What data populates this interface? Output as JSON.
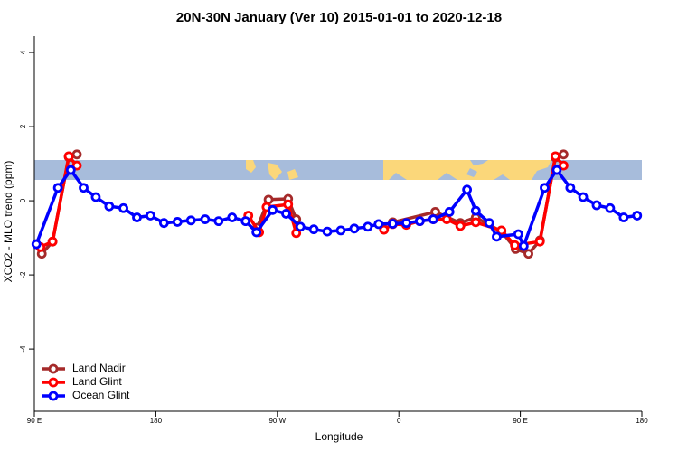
{
  "chart_data": {
    "type": "line",
    "title": "20N-30N January (Ver 10)   2015-01-01 to 2020-12-18",
    "x_label": "Longitude",
    "y_label": "XCO2 - MLO trend (ppm)",
    "xlim": [
      90,
      540
    ],
    "ylim": [
      -5.68,
      4.44
    ],
    "xticks": [
      {
        "value": 90,
        "label": "90 E"
      },
      180,
      {
        "value": 270,
        "label": "90 W"
      },
      {
        "value": 360,
        "label": "0"
      },
      {
        "value": 450,
        "label": "90 E"
      },
      {
        "value": 540,
        "label": "180"
      }
    ],
    "yticks": [
      4,
      2,
      0,
      -2,
      -4
    ],
    "legend": "bottomleft",
    "series": [
      {
        "name": "Land Nadir",
        "color": "#a52a2a",
        "x": [
          95.5,
          103.5,
          115.5,
          121.5,
          null,
          255,
          263.5,
          278,
          284,
          null,
          355.5,
          387,
          405.5,
          417,
          436,
          446.5,
          456,
          464.5,
          476,
          482
        ],
        "values": [
          -1.43,
          -1.1,
          1.18,
          1.25,
          null,
          -0.73,
          0.03,
          0.05,
          -0.5,
          null,
          -0.58,
          -0.3,
          -0.6,
          -0.45,
          -0.83,
          -1.3,
          -1.43,
          -1.07,
          1.17,
          1.25
        ]
      },
      {
        "name": "Land Glint",
        "color": "#ff0000",
        "x": [
          94.5,
          103.5,
          115.5,
          121.5,
          null,
          248.5,
          256.5,
          262,
          278,
          284,
          null,
          349,
          355.5,
          365.5,
          375.5,
          385.5,
          395.5,
          405.5,
          417,
          436,
          446,
          464.5,
          476,
          482
        ],
        "values": [
          -1.25,
          -1.1,
          1.2,
          0.95,
          null,
          -0.4,
          -0.85,
          -0.17,
          -0.1,
          -0.87,
          null,
          -0.78,
          -0.63,
          -0.65,
          -0.55,
          -0.5,
          -0.5,
          -0.68,
          -0.58,
          -0.8,
          -1.2,
          -1.1,
          1.2,
          0.95
        ]
      },
      {
        "name": "Ocean Glint",
        "color": "#0000ff",
        "x": [
          91.5,
          107.5,
          117,
          126.5,
          135.5,
          145.5,
          156,
          166,
          176,
          186,
          196,
          206,
          216.5,
          226.5,
          236.5,
          246.5,
          254.5,
          266.5,
          276.5,
          287,
          297,
          307,
          317,
          327,
          337,
          345,
          355.5,
          365.5,
          375.5,
          385.5,
          397.5,
          410.5,
          417,
          427,
          432.5,
          448.5,
          452.5,
          468,
          477,
          487,
          496.5,
          506.5,
          516.5,
          526.5,
          536.5
        ],
        "values": [
          -1.17,
          0.35,
          0.83,
          0.35,
          0.1,
          -0.15,
          -0.2,
          -0.45,
          -0.4,
          -0.6,
          -0.57,
          -0.53,
          -0.5,
          -0.55,
          -0.45,
          -0.55,
          -0.85,
          -0.25,
          -0.35,
          -0.7,
          -0.77,
          -0.83,
          -0.8,
          -0.75,
          -0.7,
          -0.63,
          -0.62,
          -0.6,
          -0.55,
          -0.5,
          -0.3,
          0.3,
          -0.27,
          -0.6,
          -0.97,
          -0.9,
          -1.22,
          0.35,
          0.83,
          0.35,
          0.1,
          -0.12,
          -0.2,
          -0.45,
          -0.4
        ]
      }
    ]
  }
}
